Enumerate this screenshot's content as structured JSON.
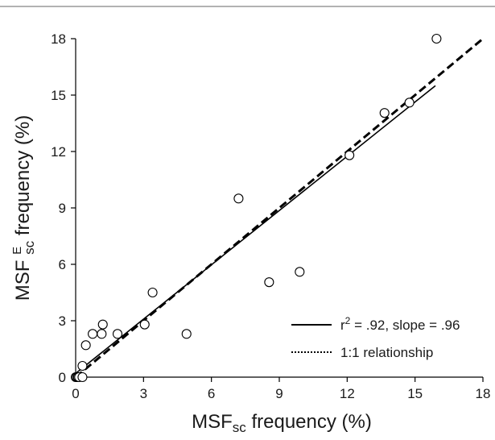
{
  "chart_data": {
    "type": "scatter",
    "xlabel_main": "MSF",
    "xlabel_sub": "sc",
    "xlabel_rest": " frequency (%)",
    "ylabel_main": "MSF ",
    "ylabel_sup": "E",
    "ylabel_sub": "sc",
    "ylabel_rest": " frequency (%)",
    "xlim": [
      0,
      18
    ],
    "ylim": [
      0,
      18
    ],
    "xticks": [
      0,
      3,
      6,
      9,
      12,
      15,
      18
    ],
    "yticks": [
      0,
      3,
      6,
      9,
      12,
      15,
      18
    ],
    "points": [
      {
        "x": 0.0,
        "y": 0.0
      },
      {
        "x": 0.05,
        "y": 0.0
      },
      {
        "x": 0.1,
        "y": 0.0
      },
      {
        "x": 0.15,
        "y": 0.0
      },
      {
        "x": 0.3,
        "y": 0.0
      },
      {
        "x": 0.3,
        "y": 0.6
      },
      {
        "x": 0.45,
        "y": 1.7
      },
      {
        "x": 0.75,
        "y": 2.3
      },
      {
        "x": 1.15,
        "y": 2.3
      },
      {
        "x": 1.2,
        "y": 2.8
      },
      {
        "x": 1.85,
        "y": 2.3
      },
      {
        "x": 3.05,
        "y": 2.8
      },
      {
        "x": 3.4,
        "y": 4.5
      },
      {
        "x": 4.9,
        "y": 2.3
      },
      {
        "x": 7.2,
        "y": 9.5
      },
      {
        "x": 8.55,
        "y": 5.05
      },
      {
        "x": 9.9,
        "y": 5.6
      },
      {
        "x": 12.1,
        "y": 11.8
      },
      {
        "x": 13.65,
        "y": 14.05
      },
      {
        "x": 14.75,
        "y": 14.6
      },
      {
        "x": 15.95,
        "y": 18.0
      }
    ],
    "fit_line": {
      "x": [
        0,
        15.9
      ],
      "y": [
        0.2,
        15.5
      ]
    },
    "identity_line": {
      "x": [
        0,
        18
      ],
      "y": [
        0,
        18
      ]
    },
    "legend": {
      "placement": "bottom-right",
      "fit_label": "r",
      "fit_label_sup": "2",
      "fit_label_rest": " = .92, slope = .96",
      "identity_label": "1:1 relationship"
    }
  }
}
